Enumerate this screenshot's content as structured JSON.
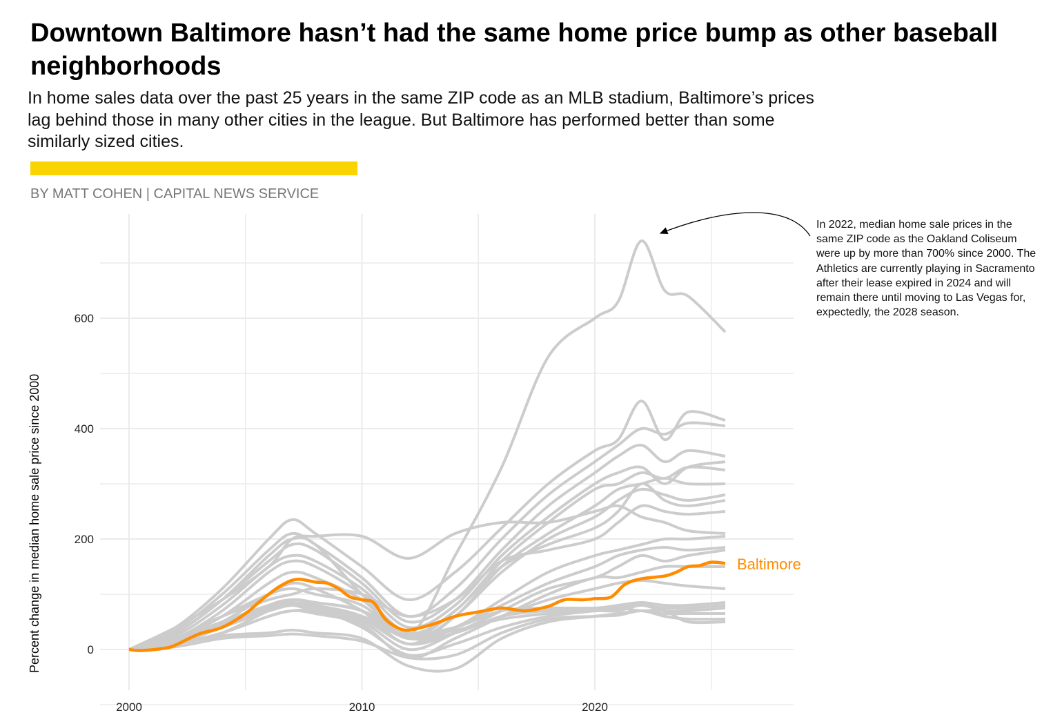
{
  "title": "Downtown Baltimore hasn’t had the same home price bump as other baseball neighborhoods",
  "subtitle": "In home sales data over the past 25 years in the same ZIP code as an MLB stadium, Baltimore’s prices lag behind those in many other cities in the league. But Baltimore has performed better than some similarly sized cities.",
  "byline": "BY MATT COHEN | CAPITAL NEWS SERVICE",
  "accent_bar_color": "#F9D400",
  "annotation": "In 2022, median home sale prices in the same ZIP code as the Oakland Coliseum were up by more than 700% since 2000. The Athletics are currently playing in Sacramento after their lease expired in 2024 and will remain there until moving to Las Vegas for, expectedly, the 2028 season.",
  "chart_data": {
    "type": "line",
    "xlabel": "",
    "ylabel": "Percent change in median home sale price since 2000",
    "xlim": [
      1999.3,
      2028.2
    ],
    "ylim": [
      -75,
      790
    ],
    "x_ticks": [
      "2000",
      "2010",
      "2020"
    ],
    "y_ticks": [
      "0",
      "200",
      "400",
      "600"
    ],
    "grid": true,
    "highlight": {
      "name": "Baltimore",
      "color": "#FF8C00",
      "x": [
        2000,
        2000.5,
        2001.5,
        2002,
        2003,
        2004,
        2005,
        2005.7,
        2006.5,
        2007.2,
        2008,
        2008.5,
        2009,
        2009.5,
        2010,
        2010.5,
        2011,
        2011.5,
        2012,
        2013,
        2014,
        2015,
        2016,
        2017,
        2018,
        2018.7,
        2019.5,
        2020,
        2020.7,
        2021.3,
        2022,
        2023,
        2023.5,
        2024,
        2024.5,
        2025,
        2025.6
      ],
      "y": [
        0,
        -2,
        2,
        8,
        28,
        40,
        65,
        90,
        115,
        127,
        122,
        120,
        110,
        95,
        90,
        85,
        55,
        40,
        35,
        45,
        60,
        68,
        75,
        70,
        78,
        90,
        90,
        92,
        95,
        118,
        128,
        133,
        140,
        150,
        152,
        158,
        156
      ]
    },
    "other_color": "#CCCCCC",
    "other_x": [
      2000,
      2002,
      2004,
      2006,
      2007,
      2008,
      2010,
      2012,
      2014,
      2016,
      2018,
      2020,
      2021,
      2022,
      2023,
      2024,
      2025.6
    ],
    "other_series": [
      [
        0,
        30,
        90,
        170,
        200,
        190,
        100,
        25,
        170,
        330,
        530,
        600,
        630,
        740,
        650,
        640,
        575
      ],
      [
        0,
        40,
        110,
        200,
        235,
        210,
        150,
        90,
        140,
        220,
        300,
        360,
        380,
        450,
        380,
        430,
        415
      ],
      [
        0,
        35,
        100,
        180,
        210,
        190,
        130,
        60,
        110,
        200,
        280,
        340,
        370,
        400,
        390,
        410,
        405
      ],
      [
        0,
        30,
        90,
        160,
        190,
        180,
        120,
        50,
        90,
        180,
        260,
        320,
        350,
        370,
        340,
        360,
        350
      ],
      [
        0,
        25,
        80,
        150,
        170,
        160,
        110,
        40,
        80,
        170,
        240,
        300,
        320,
        330,
        300,
        330,
        340
      ],
      [
        0,
        20,
        70,
        140,
        160,
        150,
        100,
        30,
        70,
        160,
        230,
        290,
        300,
        320,
        310,
        330,
        325
      ],
      [
        0,
        20,
        60,
        120,
        140,
        130,
        90,
        20,
        60,
        150,
        210,
        260,
        290,
        300,
        310,
        300,
        300
      ],
      [
        0,
        15,
        50,
        100,
        120,
        110,
        70,
        10,
        60,
        140,
        200,
        240,
        270,
        290,
        280,
        270,
        280
      ],
      [
        0,
        20,
        60,
        100,
        110,
        100,
        80,
        20,
        70,
        150,
        190,
        220,
        250,
        300,
        270,
        260,
        270
      ],
      [
        0,
        20,
        60,
        90,
        100,
        110,
        100,
        60,
        90,
        160,
        180,
        200,
        230,
        260,
        250,
        245,
        250
      ],
      [
        0,
        40,
        90,
        150,
        200,
        205,
        205,
        165,
        210,
        230,
        230,
        250,
        260,
        240,
        230,
        215,
        210
      ],
      [
        0,
        15,
        40,
        80,
        90,
        85,
        70,
        20,
        40,
        90,
        140,
        170,
        180,
        190,
        200,
        200,
        205
      ],
      [
        0,
        20,
        50,
        80,
        85,
        80,
        60,
        10,
        40,
        80,
        120,
        150,
        170,
        180,
        185,
        180,
        185
      ],
      [
        0,
        15,
        40,
        75,
        80,
        70,
        50,
        0,
        30,
        70,
        110,
        130,
        150,
        170,
        160,
        170,
        180
      ],
      [
        0,
        10,
        30,
        60,
        70,
        65,
        45,
        -15,
        20,
        60,
        100,
        130,
        130,
        140,
        150,
        150,
        150
      ],
      [
        0,
        10,
        30,
        70,
        80,
        75,
        55,
        10,
        30,
        60,
        90,
        110,
        120,
        125,
        120,
        115,
        110
      ],
      [
        0,
        15,
        45,
        80,
        90,
        85,
        70,
        30,
        40,
        70,
        75,
        75,
        80,
        85,
        80,
        80,
        85
      ],
      [
        0,
        10,
        40,
        70,
        80,
        75,
        60,
        20,
        30,
        60,
        70,
        70,
        75,
        80,
        75,
        75,
        80
      ],
      [
        0,
        10,
        30,
        60,
        70,
        70,
        60,
        25,
        35,
        55,
        65,
        70,
        70,
        80,
        70,
        70,
        75
      ],
      [
        0,
        10,
        25,
        30,
        35,
        30,
        20,
        -30,
        -35,
        20,
        50,
        60,
        65,
        70,
        65,
        65,
        65
      ],
      [
        0,
        5,
        20,
        25,
        28,
        25,
        15,
        -15,
        -10,
        30,
        55,
        60,
        62,
        70,
        60,
        55,
        55
      ],
      [
        0,
        15,
        45,
        70,
        80,
        75,
        40,
        -10,
        10,
        40,
        60,
        70,
        75,
        70,
        70,
        50,
        50
      ]
    ]
  }
}
